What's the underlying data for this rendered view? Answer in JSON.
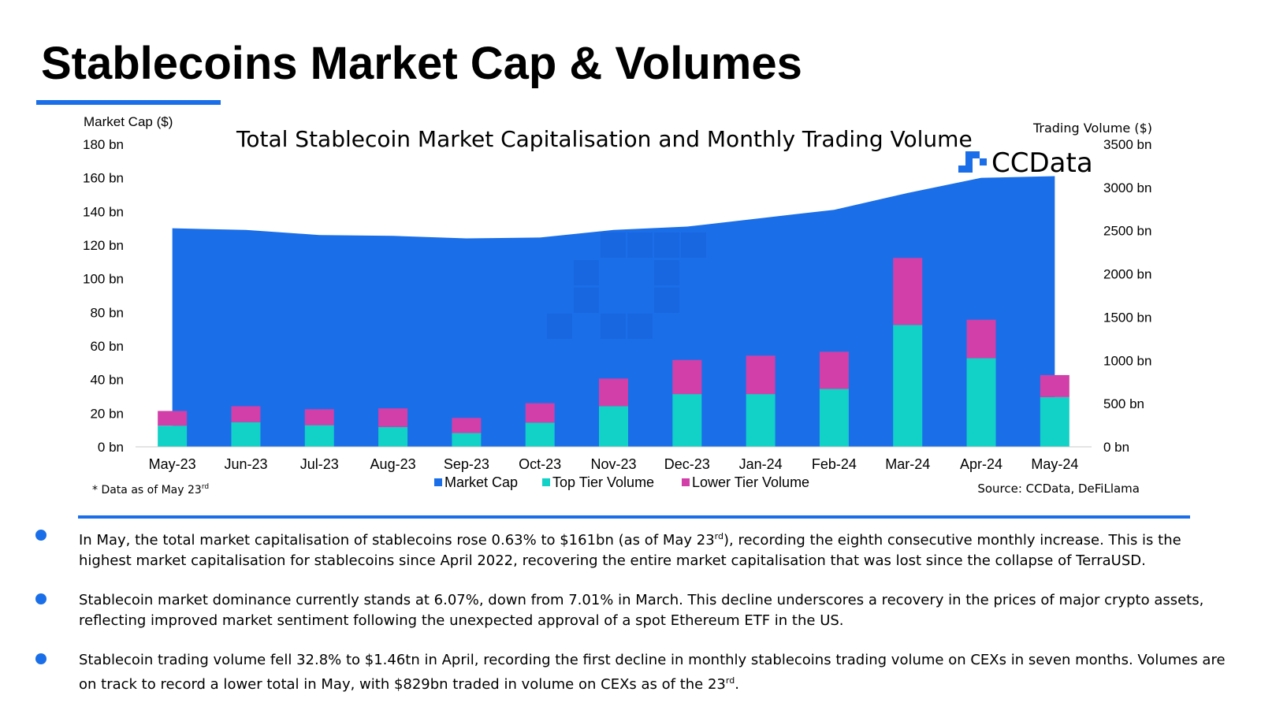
{
  "page": {
    "title": "Stablecoins Market Cap & Volumes"
  },
  "colors": {
    "accent": "#1a6ee8",
    "market_cap": "#1a6ee8",
    "top_tier": "#12d1c6",
    "lower_tier": "#d23fa8"
  },
  "bullets": [
    {
      "before": "In May, the total market capitalisation of stablecoins rose 0.63% to $161bn (as of May 23",
      "sup": "rd",
      "after": "), recording the eighth consecutive monthly increase. This is the",
      "line2": "highest market capitalisation for stablecoins since April 2022, recovering the entire market capitalisation that was lost since the collapse of TerraUSD."
    },
    {
      "before": "Stablecoin market dominance currently stands at 6.07%, down from 7.01% in March. This decline underscores a recovery in the prices of major crypto assets,",
      "sup": "",
      "after": "",
      "line2": "reflecting improved market sentiment following the unexpected approval of a spot Ethereum ETF in the US."
    },
    {
      "before": "Stablecoin trading volume fell 32.8% to $1.46tn in April, recording the first decline in monthly stablecoins trading volume on CEXs in seven months. Volumes are",
      "sup": "",
      "after": "",
      "line2": "on track to record a lower total in May, with $829bn traded in volume on CEXs as of the 23",
      "line2_sup": "rd",
      "line2_after": "."
    }
  ],
  "chart_data": {
    "type": "bar",
    "title": "Total Stablecoin Market Capitalisation and Monthly Trading Volume",
    "brand": "CCData",
    "y_left_label": "Market Cap ($)",
    "y_right_label": "Trading Volume ($)",
    "ylim_left": [
      0,
      180
    ],
    "ylim_right": [
      0,
      3500
    ],
    "y_left_ticks": [
      "0 bn",
      "20 bn",
      "40 bn",
      "60 bn",
      "80 bn",
      "100 bn",
      "120 bn",
      "140 bn",
      "160 bn",
      "180 bn"
    ],
    "y_right_ticks": [
      "0 bn",
      "500 bn",
      "1000 bn",
      "1500 bn",
      "2000 bn",
      "2500 bn",
      "3000 bn",
      "3500 bn"
    ],
    "categories": [
      "May-23",
      "Jun-23",
      "Jul-23",
      "Aug-23",
      "Sep-23",
      "Oct-23",
      "Nov-23",
      "Dec-23",
      "Jan-24",
      "Feb-24",
      "Mar-24",
      "Apr-24",
      "May-24"
    ],
    "series": [
      {
        "name": "Market Cap",
        "type": "area",
        "axis": "left",
        "values": [
          130,
          129,
          126,
          125.5,
          124,
          124.5,
          129,
          131,
          136,
          141,
          151,
          160,
          161
        ]
      },
      {
        "name": "Top Tier Volume",
        "type": "bar",
        "axis": "right",
        "values": [
          245,
          285,
          250,
          230,
          160,
          280,
          470,
          610,
          610,
          670,
          1410,
          1025,
          575
        ]
      },
      {
        "name": "Lower Tier Volume",
        "type": "bar",
        "axis": "right",
        "values": [
          170,
          185,
          185,
          215,
          175,
          225,
          320,
          395,
          445,
          430,
          775,
          445,
          255
        ]
      }
    ],
    "legend": [
      "Market Cap",
      "Top Tier Volume",
      "Lower Tier Volume"
    ],
    "legend_position": "bottom",
    "footnote": "* Data as of May 23",
    "footnote_sup": "rd",
    "source": "Source: CCData, DeFiLlama"
  }
}
